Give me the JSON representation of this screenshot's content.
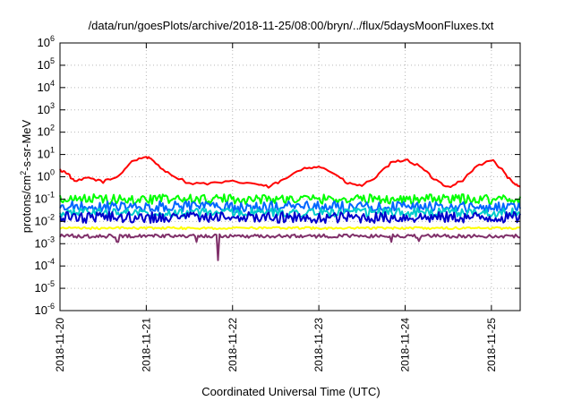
{
  "chart_data": {
    "type": "line",
    "title": "/data/run/goesPlots/archive/2018-11-25/08:00/bryn/../flux/5daysMoonFluxes.txt",
    "xlabel": "Coordinated Universal Time (UTC)",
    "ylabel": "protons/cm²-s-sr-MeV",
    "ylabel_parts": {
      "base": "protons/cm",
      "sup": "2",
      "rest": "-s-sr-MeV"
    },
    "x_range": [
      "2018-11-20T00:00",
      "2018-11-25T08:00"
    ],
    "x_tick_labels": [
      "2018-11-20",
      "2018-11-21",
      "2018-11-22",
      "2018-11-23",
      "2018-11-24",
      "2018-11-25"
    ],
    "y_scale": "log",
    "ylim": [
      1e-06,
      1000000.0
    ],
    "y_tick_labels": [
      {
        "base": "10",
        "exp": "-6"
      },
      {
        "base": "10",
        "exp": "-5"
      },
      {
        "base": "10",
        "exp": "-4"
      },
      {
        "base": "10",
        "exp": "-3"
      },
      {
        "base": "10",
        "exp": "-2"
      },
      {
        "base": "10",
        "exp": "-1"
      },
      {
        "base": "10",
        "exp": "0"
      },
      {
        "base": "10",
        "exp": "1"
      },
      {
        "base": "10",
        "exp": "2"
      },
      {
        "base": "10",
        "exp": "3"
      },
      {
        "base": "10",
        "exp": "4"
      },
      {
        "base": "10",
        "exp": "5"
      },
      {
        "base": "10",
        "exp": "6"
      }
    ],
    "grid": true,
    "legend": "none",
    "series": [
      {
        "color": "#ff0000",
        "points": [
          [
            "2018-11-20T00:00",
            2.0
          ],
          [
            "2018-11-20T02:00",
            1.5
          ],
          [
            "2018-11-20T04:00",
            0.6
          ],
          [
            "2018-11-20T08:00",
            0.9
          ],
          [
            "2018-11-20T12:00",
            0.6
          ],
          [
            "2018-11-20T16:00",
            1.0
          ],
          [
            "2018-11-20T20:00",
            5.0
          ],
          [
            "2018-11-21T00:00",
            8.0
          ],
          [
            "2018-11-21T02:00",
            5.0
          ],
          [
            "2018-11-21T06:00",
            1.5
          ],
          [
            "2018-11-21T12:00",
            0.5
          ],
          [
            "2018-11-21T18:00",
            0.5
          ],
          [
            "2018-11-22T00:00",
            0.6
          ],
          [
            "2018-11-22T06:00",
            0.5
          ],
          [
            "2018-11-22T10:00",
            0.35
          ],
          [
            "2018-11-22T14:00",
            0.7
          ],
          [
            "2018-11-22T20:00",
            2.5
          ],
          [
            "2018-11-23T00:00",
            3.0
          ],
          [
            "2018-11-23T04:00",
            1.5
          ],
          [
            "2018-11-23T08:00",
            0.5
          ],
          [
            "2018-11-23T12:00",
            0.4
          ],
          [
            "2018-11-23T16:00",
            1.0
          ],
          [
            "2018-11-23T20:00",
            4.0
          ],
          [
            "2018-11-24T00:00",
            6.0
          ],
          [
            "2018-11-24T04:00",
            3.0
          ],
          [
            "2018-11-24T08:00",
            0.8
          ],
          [
            "2018-11-24T12:00",
            0.35
          ],
          [
            "2018-11-24T16:00",
            0.7
          ],
          [
            "2018-11-24T20:00",
            3.0
          ],
          [
            "2018-11-25T00:00",
            6.0
          ],
          [
            "2018-11-25T03:00",
            2.0
          ],
          [
            "2018-11-25T06:00",
            0.5
          ],
          [
            "2018-11-25T08:00",
            0.35
          ]
        ]
      },
      {
        "color": "#00ff00",
        "base": 0.1,
        "amp": 0.22,
        "seed": 11,
        "dips": []
      },
      {
        "color": "#0066ff",
        "base": 0.045,
        "amp": 0.25,
        "seed": 23,
        "dips": []
      },
      {
        "color": "#00cccc",
        "base": 0.025,
        "amp": 0.2,
        "seed": 37,
        "dips": []
      },
      {
        "color": "#0000cc",
        "base": 0.015,
        "amp": 0.25,
        "seed": 41,
        "dips": []
      },
      {
        "color": "#ffff00",
        "base": 0.005,
        "amp": 0.05,
        "seed": 53,
        "dips": []
      },
      {
        "color": "#80306a",
        "base": 0.0022,
        "amp": 0.08,
        "seed": 67,
        "dips": [
          [
            "2018-11-20T16:00",
            0.0012
          ],
          [
            "2018-11-21T14:00",
            0.0012
          ],
          [
            "2018-11-21T20:00",
            0.00018
          ],
          [
            "2018-11-23T20:00",
            0.0012
          ],
          [
            "2018-11-24T04:00",
            0.0013
          ]
        ]
      }
    ]
  }
}
